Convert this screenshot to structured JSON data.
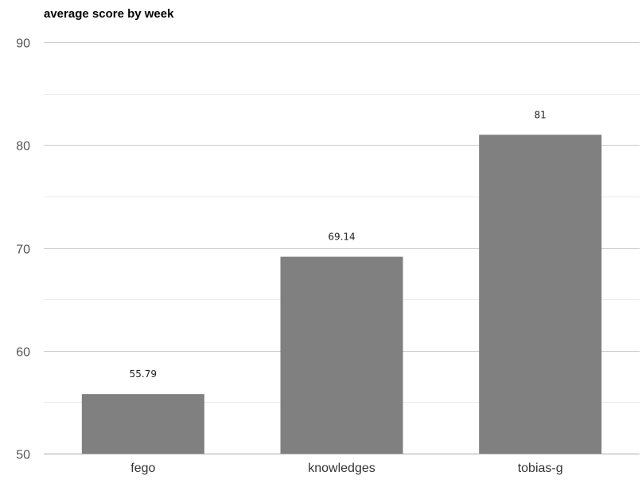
{
  "chart_data": {
    "type": "bar",
    "title": "average score by week",
    "categories": [
      "fego",
      "knowledges",
      "tobias-g"
    ],
    "values": [
      55.79,
      69.14,
      81
    ],
    "data_labels": [
      "55.79",
      "69.14",
      "81"
    ],
    "xlabel": "",
    "ylabel": "",
    "ylim": [
      50,
      90
    ],
    "yticks": [
      50,
      60,
      70,
      80,
      90
    ],
    "y_tick_labels": [
      "50",
      "60",
      "70",
      "80",
      "90"
    ],
    "minor_grid_step": 5,
    "grid": true,
    "legend": "none",
    "colors": {
      "bar": "#808080",
      "major_grid": "#cccccc",
      "minor_grid": "#ebebeb",
      "axis": "#aaaaaa"
    }
  }
}
